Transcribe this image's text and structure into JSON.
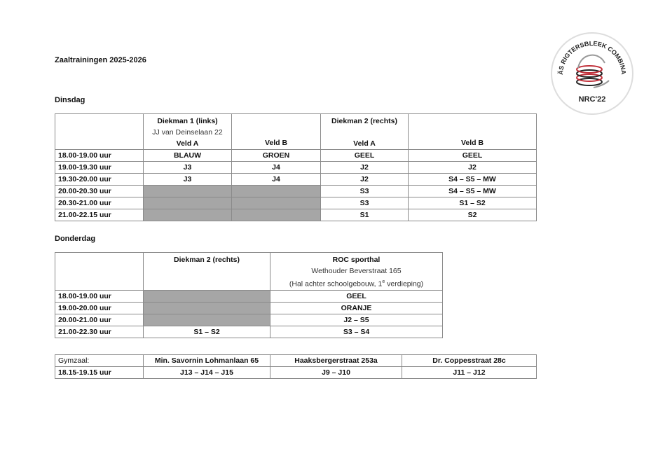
{
  "title": "Zaaltrainingen 2025-2026",
  "logo": {
    "text_top": "NÄÄS RIGTERSBLEEK COMBINATIE",
    "text_bottom": "NRC'22",
    "accent": "#c0303a"
  },
  "dinsdag": {
    "heading": "Dinsdag",
    "header": {
      "col1": {
        "name": "Diekman 1 (links)",
        "address": "JJ van Deinselaan 22",
        "veld": "Veld A"
      },
      "col2": {
        "veld": "Veld B"
      },
      "col3": {
        "name": "Diekman 2 (rechts)",
        "veld": "Veld A"
      },
      "col4": {
        "veld": "Veld B"
      }
    },
    "rows": [
      {
        "time": "18.00-19.00 uur",
        "cells": [
          "BLAUW",
          "GROEN",
          "GEEL",
          "GEEL"
        ]
      },
      {
        "time": "19.00-19.30 uur",
        "cells": [
          "J3",
          "J4",
          "J2",
          "J2"
        ]
      },
      {
        "time": "19.30-20.00 uur",
        "cells": [
          "J3",
          "J4",
          "J2",
          "S4 – S5 – MW"
        ]
      },
      {
        "time": "20.00-20.30 uur",
        "cells": [
          "",
          "",
          "S3",
          "S4 – S5 – MW"
        ]
      },
      {
        "time": "20.30-21.00 uur",
        "cells": [
          "",
          "",
          "S3",
          "S1 – S2"
        ]
      },
      {
        "time": "21.00-22.15 uur",
        "cells": [
          "",
          "",
          "S1",
          "S2"
        ]
      }
    ]
  },
  "donderdag": {
    "heading": "Donderdag",
    "header": {
      "col1": {
        "name": "Diekman 2 (rechts)"
      },
      "col2": {
        "name": "ROC sporthal",
        "address": "Wethouder Beverstraat 165",
        "note_pre": "(Hal achter schoolgebouw, 1",
        "note_sup": "e",
        "note_post": " verdieping)"
      }
    },
    "rows": [
      {
        "time": "18.00-19.00 uur",
        "cells": [
          "",
          "GEEL"
        ]
      },
      {
        "time": "19.00-20.00 uur",
        "cells": [
          "",
          "ORANJE"
        ]
      },
      {
        "time": "20.00-21.00 uur",
        "cells": [
          "",
          "J2 – S5"
        ]
      },
      {
        "time": "21.00-22.30 uur",
        "cells": [
          "S1 – S2",
          "S3 – S4"
        ]
      }
    ]
  },
  "gymzaal": {
    "header": [
      "Gymzaal:",
      "Min. Savornin Lohmanlaan 65",
      "Haaksbergerstraat 253a",
      "Dr. Coppesstraat 28c"
    ],
    "row": [
      "18.15-19.15 uur",
      "J13 – J14 – J15",
      "J9 – J10",
      "J11 – J12"
    ]
  }
}
